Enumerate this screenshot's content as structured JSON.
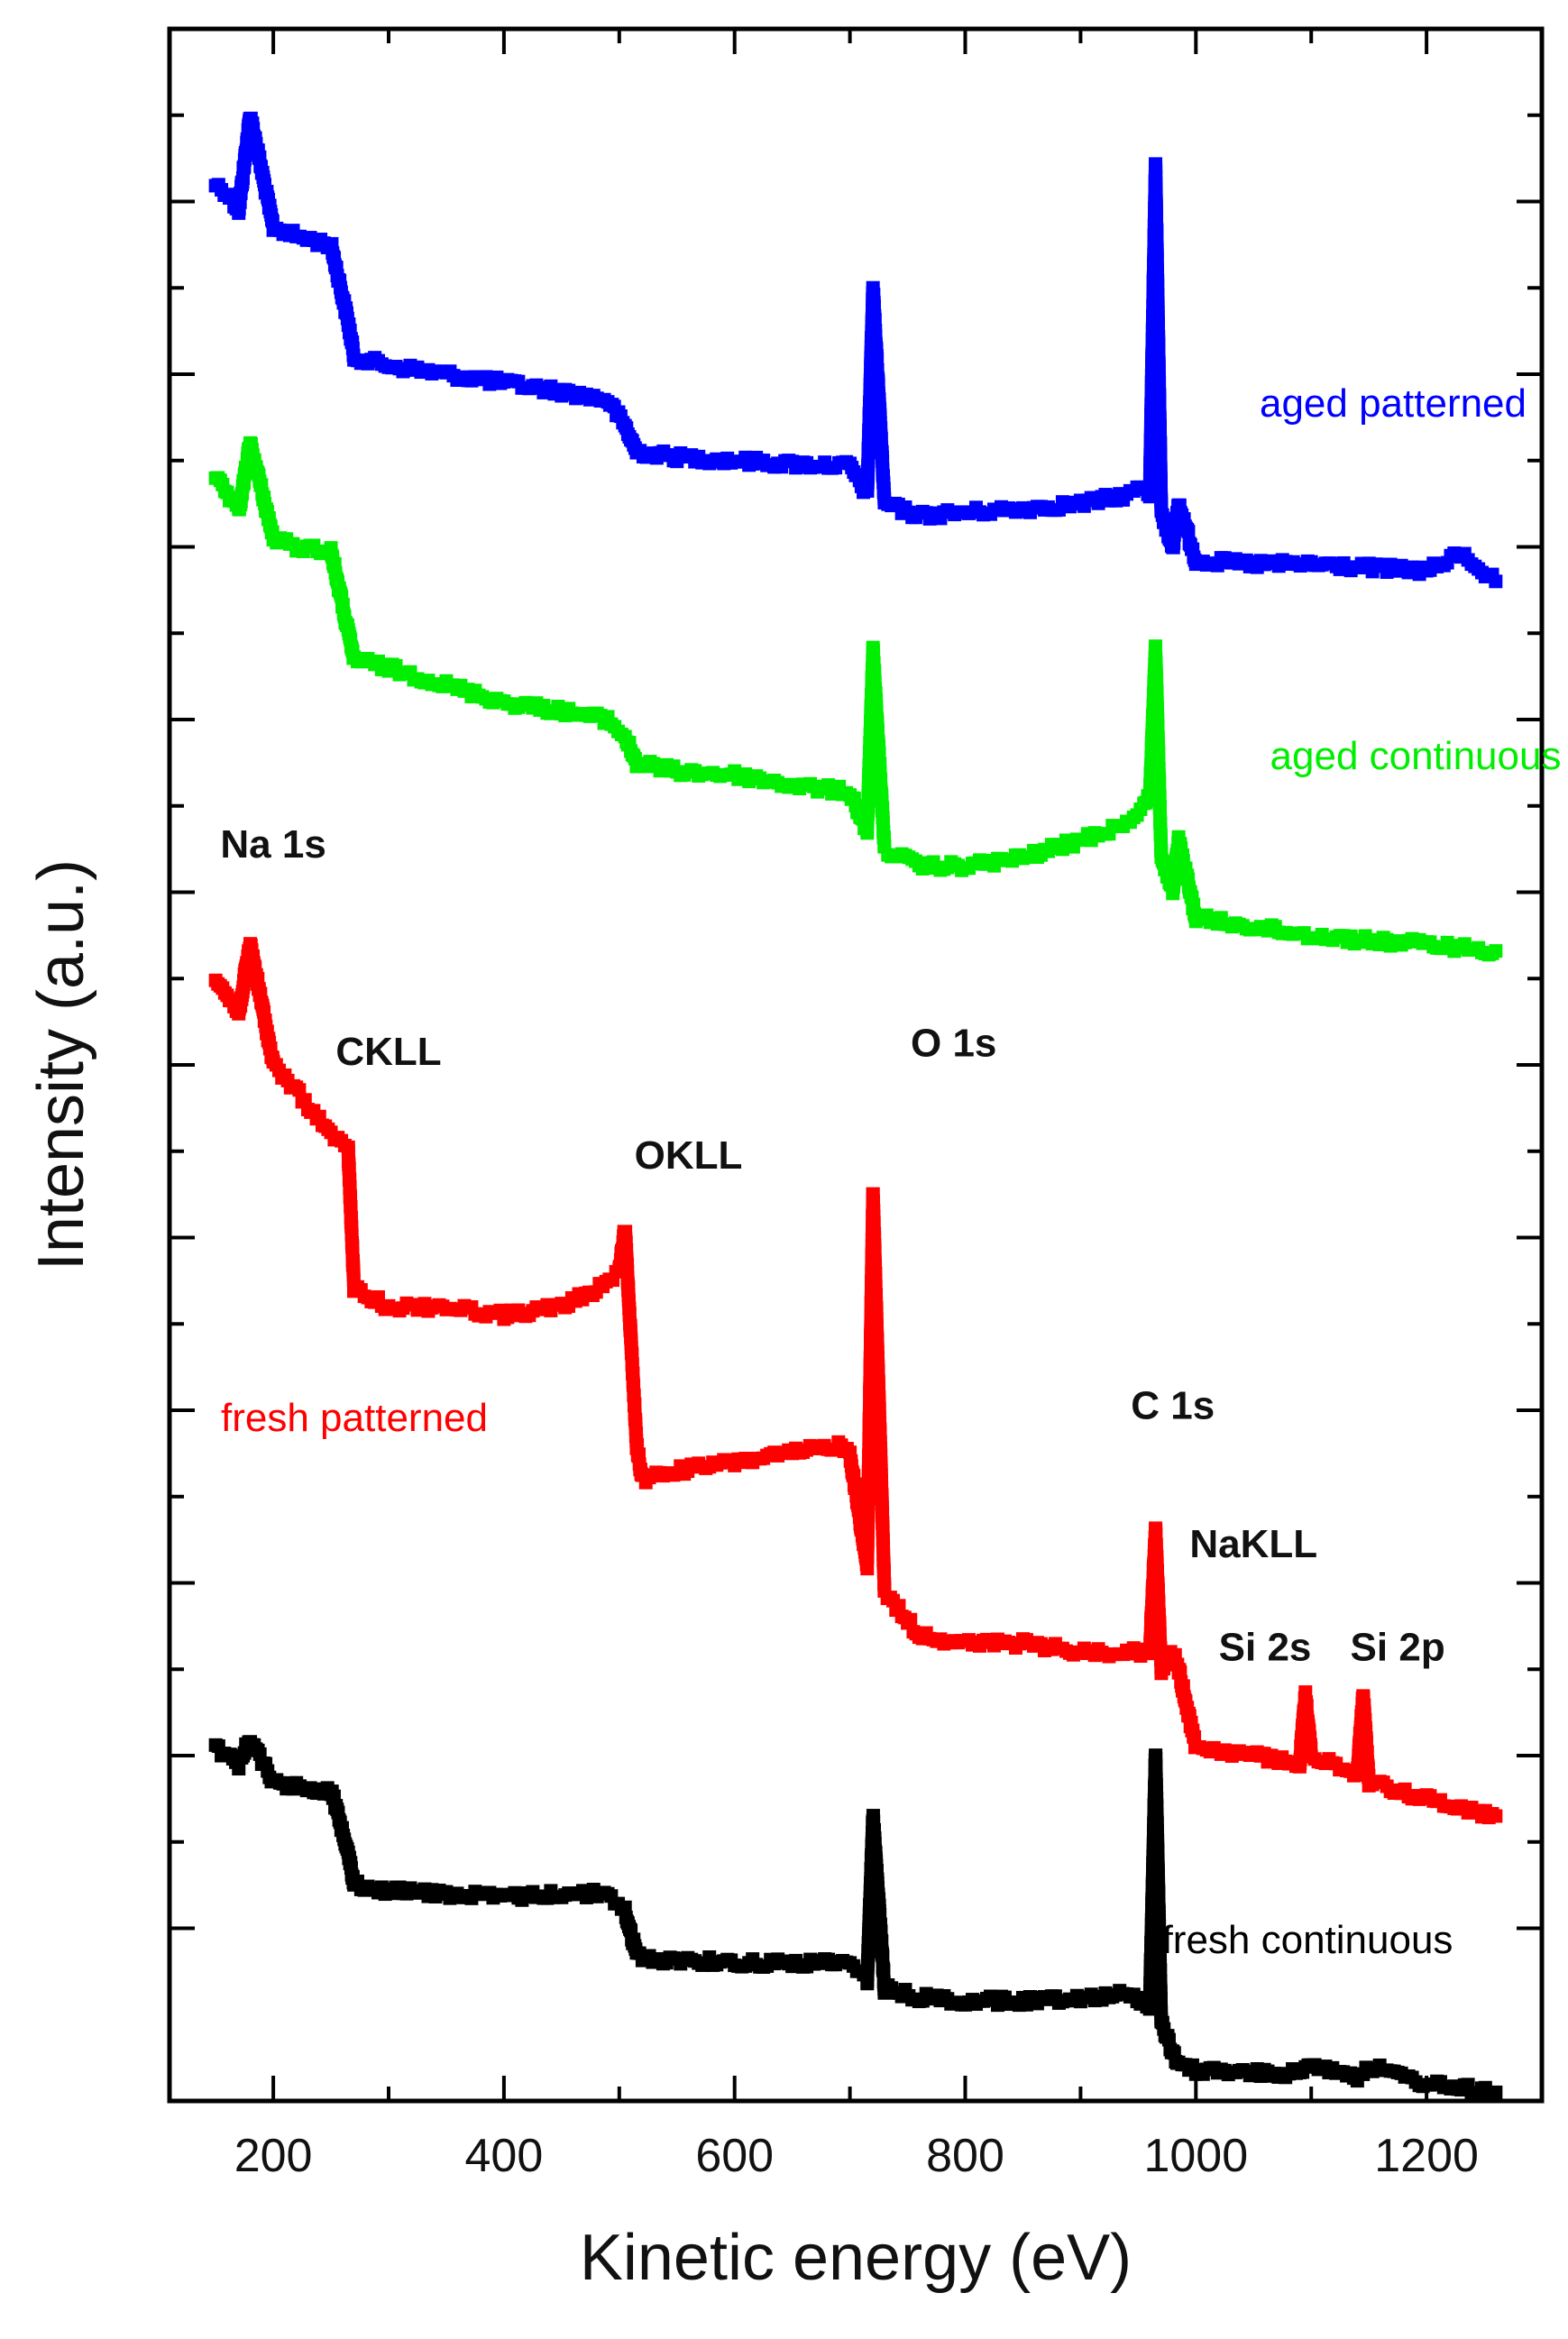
{
  "chart_data": {
    "type": "scatter",
    "title": "",
    "xlabel": "Kinetic energy (eV)",
    "ylabel": "Intensity (a.u.)",
    "xlim": [
      110,
      1300
    ],
    "ylim": [
      0,
      12
    ],
    "xticks": [
      200,
      400,
      600,
      800,
      1000,
      1200
    ],
    "xtick_labels": [
      "200",
      "400",
      "600",
      "800",
      "1000",
      "1200"
    ],
    "yticks": [
      1,
      2,
      3,
      4,
      5,
      6,
      7,
      8,
      9,
      10,
      11,
      12
    ],
    "ytick_labels_visible": false,
    "marker": "square",
    "series": [
      {
        "name": "aged patterned",
        "color": "#0000ff",
        "x": [
          150,
          160,
          170,
          180,
          200,
          220,
          250,
          265,
          270,
          300,
          350,
          400,
          450,
          490,
          505,
          515,
          550,
          600,
          650,
          700,
          715,
          720,
          730,
          760,
          800,
          850,
          900,
          940,
          955,
          960,
          965,
          970,
          980,
          985,
          1000,
          1050,
          1100,
          1150,
          1200,
          1230,
          1260
        ],
        "y": [
          11.1,
          11.05,
          10.95,
          11.5,
          10.85,
          10.8,
          10.75,
          10.3,
          10.1,
          10.05,
          10.0,
          9.95,
          9.9,
          9.85,
          9.7,
          9.55,
          9.52,
          9.5,
          9.48,
          9.47,
          9.3,
          10.5,
          9.25,
          9.18,
          9.2,
          9.22,
          9.25,
          9.3,
          9.35,
          9.3,
          11.2,
          9.2,
          9.0,
          9.25,
          8.92,
          8.9,
          8.9,
          8.88,
          8.86,
          8.96,
          8.8
        ],
        "label": "aged patterned"
      },
      {
        "name": "aged continuous",
        "color": "#00ee00",
        "x": [
          150,
          160,
          170,
          180,
          200,
          220,
          250,
          265,
          270,
          300,
          350,
          400,
          450,
          490,
          505,
          515,
          550,
          600,
          650,
          700,
          715,
          720,
          730,
          760,
          800,
          850,
          900,
          940,
          955,
          960,
          965,
          970,
          980,
          985,
          1000,
          1050,
          1100,
          1150,
          1200,
          1230,
          1260
        ],
        "y": [
          9.4,
          9.3,
          9.2,
          9.6,
          9.05,
          9.0,
          8.98,
          8.5,
          8.35,
          8.3,
          8.2,
          8.1,
          8.05,
          8.0,
          7.9,
          7.75,
          7.7,
          7.68,
          7.62,
          7.58,
          7.35,
          8.4,
          7.25,
          7.15,
          7.15,
          7.2,
          7.3,
          7.4,
          7.5,
          7.55,
          8.4,
          7.2,
          7.0,
          7.3,
          6.85,
          6.8,
          6.75,
          6.72,
          6.7,
          6.68,
          6.66
        ],
        "label": "aged continuous"
      },
      {
        "name": "fresh patterned",
        "color": "#ff0000",
        "x": [
          150,
          160,
          170,
          180,
          200,
          220,
          250,
          265,
          270,
          300,
          350,
          400,
          450,
          480,
          500,
          505,
          515,
          520,
          550,
          600,
          650,
          690,
          700,
          715,
          720,
          730,
          760,
          800,
          850,
          900,
          940,
          955,
          960,
          965,
          970,
          980,
          985,
          1000,
          1050,
          1090,
          1095,
          1100,
          1140,
          1145,
          1150,
          1200,
          1260
        ],
        "y": [
          6.5,
          6.4,
          6.3,
          6.7,
          6.0,
          5.85,
          5.6,
          5.5,
          4.7,
          4.6,
          4.6,
          4.55,
          4.6,
          4.7,
          4.8,
          5.05,
          3.8,
          3.6,
          3.65,
          3.7,
          3.75,
          3.8,
          3.75,
          3.1,
          5.25,
          2.95,
          2.7,
          2.65,
          2.65,
          2.6,
          2.6,
          2.6,
          2.6,
          3.3,
          2.5,
          2.6,
          2.5,
          2.05,
          2.0,
          1.95,
          2.35,
          2.0,
          1.9,
          2.35,
          1.85,
          1.75,
          1.65
        ],
        "label": "fresh patterned"
      },
      {
        "name": "fresh continuous",
        "color": "#000000",
        "x": [
          150,
          160,
          170,
          180,
          200,
          220,
          250,
          265,
          270,
          300,
          350,
          400,
          450,
          490,
          505,
          515,
          520,
          550,
          600,
          650,
          700,
          715,
          720,
          730,
          760,
          800,
          850,
          900,
          940,
          955,
          960,
          965,
          970,
          980,
          985,
          1000,
          1050,
          1090,
          1100,
          1140,
          1150,
          1200,
          1260
        ],
        "y": [
          2.05,
          2.0,
          1.95,
          2.1,
          1.85,
          1.82,
          1.8,
          1.45,
          1.25,
          1.22,
          1.2,
          1.18,
          1.2,
          1.2,
          1.1,
          0.85,
          0.82,
          0.82,
          0.8,
          0.8,
          0.8,
          0.7,
          1.65,
          0.65,
          0.6,
          0.58,
          0.58,
          0.6,
          0.62,
          0.58,
          0.55,
          2.0,
          0.45,
          0.28,
          0.2,
          0.18,
          0.16,
          0.16,
          0.22,
          0.14,
          0.2,
          0.1,
          0.05
        ],
        "label": "fresh continuous"
      }
    ],
    "annotations": [
      {
        "text": "Na 1s",
        "x": 200,
        "y": 7.2
      },
      {
        "text": "CKLL",
        "x": 300,
        "y": 6.0
      },
      {
        "text": "OKLL",
        "x": 560,
        "y": 5.4
      },
      {
        "text": "O 1s",
        "x": 790,
        "y": 6.05
      },
      {
        "text": "C 1s",
        "x": 980,
        "y": 3.95
      },
      {
        "text": "NaKLL",
        "x": 1050,
        "y": 3.15
      },
      {
        "text": "Si 2s",
        "x": 1060,
        "y": 2.55
      },
      {
        "text": "Si 2p",
        "x": 1175,
        "y": 2.55
      }
    ]
  }
}
